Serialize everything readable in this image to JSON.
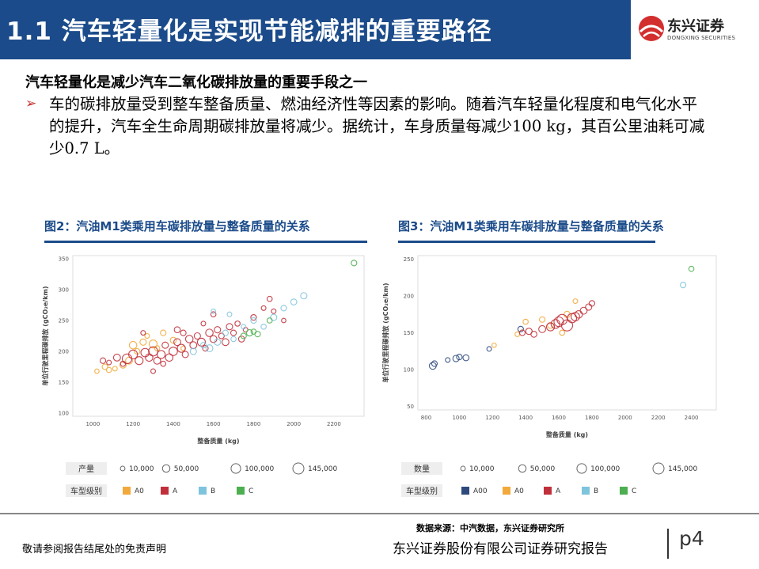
{
  "header": {
    "title": "1.1 汽车轻量化是实现节能减排的重要路径"
  },
  "logo": {
    "name": "东兴证券",
    "english": "DONGXING SECURITIES"
  },
  "subheading": "汽车轻量化是减少汽车二氧化碳排放量的重要手段之一",
  "bullet": {
    "text": "车的碳排放量受到整车整备质量、燃油经济性等因素的影响。随着汽车轻量化程度和电气化水平的提升，汽车全生命周期碳排放量将减少。据统计，车身质量每减少100 kg，其百公里油耗可减少0.7 L。"
  },
  "figures": [
    {
      "title": "图2：汽油M1类乘用车碳排放量与整备质量的关系"
    },
    {
      "title": "图3：汽油M1类乘用车碳排放量与整备质量的关系"
    }
  ],
  "chart_data": [
    {
      "type": "scatter",
      "xlabel": "整备质量 (kg)",
      "ylabel": "单位行驶里程碳排放 (gCO₂e/km)",
      "xlim": [
        900,
        2350
      ],
      "ylim": [
        95,
        355
      ],
      "x_ticks": [
        1000,
        1200,
        1400,
        1600,
        1800,
        2000,
        2200
      ],
      "y_ticks": [
        100,
        150,
        200,
        250,
        300,
        350
      ],
      "size_legend_title": "产量",
      "size_legend": [
        {
          "label": "10,000",
          "value": 10000
        },
        {
          "label": "50,000",
          "value": 50000
        },
        {
          "label": "100,000",
          "value": 100000
        },
        {
          "label": "145,000",
          "value": 145000
        }
      ],
      "color_legend_title": "车型级别",
      "series": [
        {
          "name": "A0",
          "color": "#f2a93b",
          "points": [
            [
              1020,
              168,
              8000
            ],
            [
              1060,
              175,
              20000
            ],
            [
              1080,
              170,
              15000
            ],
            [
              1110,
              172,
              10000
            ],
            [
              1150,
              178,
              30000
            ],
            [
              1180,
              185,
              40000
            ],
            [
              1200,
              210,
              50000
            ],
            [
              1220,
              200,
              20000
            ],
            [
              1250,
              215,
              30000
            ],
            [
              1270,
              225,
              10000
            ],
            [
              1300,
              212,
              60000
            ],
            [
              1320,
              205,
              15000
            ],
            [
              1350,
              230,
              20000
            ],
            [
              1400,
              218,
              25000
            ],
            [
              1450,
              205,
              10000
            ]
          ]
        },
        {
          "name": "A",
          "color": "#c0303a",
          "points": [
            [
              1050,
              185,
              20000
            ],
            [
              1080,
              182,
              10000
            ],
            [
              1120,
              190,
              40000
            ],
            [
              1150,
              180,
              15000
            ],
            [
              1170,
              188,
              100000
            ],
            [
              1200,
              195,
              80000
            ],
            [
              1230,
              185,
              60000
            ],
            [
              1260,
              198,
              70000
            ],
            [
              1280,
              190,
              50000
            ],
            [
              1300,
              200,
              90000
            ],
            [
              1320,
              185,
              40000
            ],
            [
              1340,
              195,
              60000
            ],
            [
              1360,
              210,
              30000
            ],
            [
              1380,
              190,
              50000
            ],
            [
              1400,
              200,
              70000
            ],
            [
              1420,
              215,
              40000
            ],
            [
              1440,
              205,
              60000
            ],
            [
              1460,
              195,
              30000
            ],
            [
              1480,
              220,
              50000
            ],
            [
              1500,
              210,
              40000
            ],
            [
              1520,
              225,
              30000
            ],
            [
              1540,
              215,
              60000
            ],
            [
              1560,
              205,
              20000
            ],
            [
              1580,
              230,
              50000
            ],
            [
              1600,
              220,
              40000
            ],
            [
              1620,
              235,
              30000
            ],
            [
              1640,
              225,
              20000
            ],
            [
              1660,
              215,
              40000
            ],
            [
              1680,
              240,
              30000
            ],
            [
              1700,
              230,
              20000
            ],
            [
              1720,
              245,
              15000
            ],
            [
              1740,
              220,
              25000
            ],
            [
              1760,
              235,
              10000
            ],
            [
              1800,
              255,
              20000
            ],
            [
              1850,
              270,
              10000
            ],
            [
              1880,
              285,
              15000
            ],
            [
              1900,
              265,
              10000
            ],
            [
              1950,
              250,
              8000
            ],
            [
              1250,
              230,
              10000
            ],
            [
              1350,
              180,
              15000
            ],
            [
              1450,
              230,
              20000
            ],
            [
              1550,
              245,
              10000
            ],
            [
              1600,
              260,
              15000
            ],
            [
              1300,
              168,
              10000
            ],
            [
              1420,
              235,
              25000
            ]
          ]
        },
        {
          "name": "B",
          "color": "#7fc4dd",
          "points": [
            [
              1500,
              200,
              30000
            ],
            [
              1550,
              210,
              20000
            ],
            [
              1580,
              205,
              40000
            ],
            [
              1620,
              215,
              30000
            ],
            [
              1660,
              230,
              20000
            ],
            [
              1700,
              220,
              15000
            ],
            [
              1750,
              240,
              10000
            ],
            [
              1800,
              250,
              20000
            ],
            [
              1850,
              240,
              15000
            ],
            [
              1900,
              255,
              30000
            ],
            [
              1950,
              270,
              20000
            ],
            [
              2000,
              280,
              25000
            ],
            [
              2050,
              290,
              30000
            ],
            [
              1680,
              260,
              10000
            ],
            [
              1600,
              265,
              8000
            ]
          ]
        },
        {
          "name": "C",
          "color": "#4caf50",
          "points": [
            [
              1750,
              225,
              20000
            ],
            [
              1780,
              230,
              30000
            ],
            [
              1800,
              232,
              15000
            ],
            [
              1820,
              228,
              20000
            ],
            [
              1880,
              250,
              15000
            ],
            [
              2300,
              343,
              20000
            ]
          ]
        }
      ]
    },
    {
      "type": "scatter",
      "xlabel": "整备质量 (kg)",
      "ylabel": "单位行驶里程碳排放 (gCO₂e/km)",
      "xlim": [
        750,
        2550
      ],
      "ylim": [
        45,
        255
      ],
      "x_ticks": [
        800,
        1000,
        1200,
        1400,
        1600,
        1800,
        2000,
        2200,
        2400
      ],
      "y_ticks": [
        50,
        100,
        150,
        200,
        250
      ],
      "size_legend_title": "数量",
      "size_legend": [
        {
          "label": "10,000",
          "value": 10000
        },
        {
          "label": "50,000",
          "value": 50000
        },
        {
          "label": "100,000",
          "value": 100000
        },
        {
          "label": "145,000",
          "value": 145000
        }
      ],
      "color_legend_title": "车型级别",
      "series": [
        {
          "name": "A00",
          "color": "#2e4a7d",
          "points": [
            [
              840,
              105,
              40000
            ],
            [
              850,
              108,
              20000
            ],
            [
              930,
              113,
              10000
            ],
            [
              980,
              115,
              30000
            ],
            [
              1000,
              117,
              20000
            ],
            [
              1040,
              116,
              25000
            ],
            [
              1180,
              128,
              10000
            ],
            [
              1370,
              155,
              20000
            ]
          ]
        },
        {
          "name": "A0",
          "color": "#f2a93b",
          "points": [
            [
              1210,
              133,
              8000
            ],
            [
              1350,
              148,
              10000
            ],
            [
              1400,
              165,
              15000
            ],
            [
              1500,
              168,
              20000
            ],
            [
              1550,
              160,
              25000
            ],
            [
              1650,
              175,
              30000
            ],
            [
              1700,
              193,
              10000
            ],
            [
              1620,
              150,
              15000
            ]
          ]
        },
        {
          "name": "A",
          "color": "#c0303a",
          "points": [
            [
              1380,
              150,
              20000
            ],
            [
              1420,
              152,
              30000
            ],
            [
              1450,
              148,
              25000
            ],
            [
              1500,
              155,
              40000
            ],
            [
              1550,
              158,
              60000
            ],
            [
              1580,
              162,
              80000
            ],
            [
              1600,
              165,
              100000
            ],
            [
              1620,
              168,
              120000
            ],
            [
              1650,
              160,
              145000
            ],
            [
              1680,
              170,
              90000
            ],
            [
              1700,
              172,
              70000
            ],
            [
              1720,
              175,
              50000
            ],
            [
              1750,
              180,
              40000
            ],
            [
              1780,
              185,
              30000
            ],
            [
              1800,
              190,
              20000
            ]
          ]
        },
        {
          "name": "B",
          "color": "#7fc4dd",
          "points": [
            [
              2350,
              215,
              20000
            ]
          ]
        },
        {
          "name": "C",
          "color": "#4caf50",
          "points": [
            [
              2400,
              237,
              15000
            ]
          ]
        }
      ]
    }
  ],
  "source": "数据来源：中汽数据，东兴证券研究所",
  "footer": {
    "disclaimer": "敬请参阅报告结尾处的免责声明",
    "company": "东兴证券股份有限公司证券研究报告",
    "page": "p4"
  }
}
